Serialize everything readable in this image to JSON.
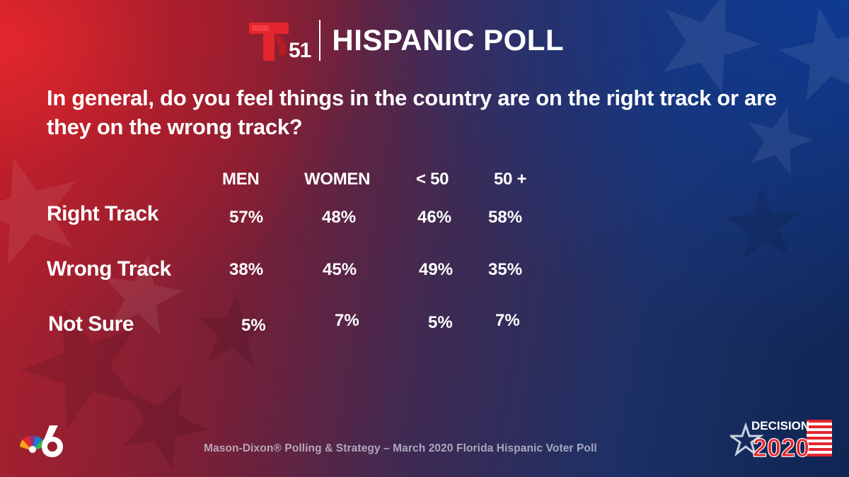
{
  "header": {
    "logo_number": "51",
    "title": "HISPANIC POLL"
  },
  "question": "In general, do you feel things in the country are on the right track or are they on the wrong track?",
  "chart_data": {
    "type": "table",
    "columns": [
      "MEN",
      "WOMEN",
      "< 50",
      "50 +"
    ],
    "rows": [
      {
        "label": "Right Track",
        "values": [
          "57%",
          "48%",
          "46%",
          "58%"
        ]
      },
      {
        "label": "Wrong Track",
        "values": [
          "38%",
          "45%",
          "49%",
          "35%"
        ]
      },
      {
        "label": "Not Sure",
        "values": [
          "5%",
          "7%",
          "5%",
          "7%"
        ]
      }
    ]
  },
  "footer": {
    "source": "Mason-Dixon® Polling & Strategy – March 2020 Florida Hispanic Voter Poll"
  },
  "branding": {
    "decision_word": "DECISION",
    "decision_year": "2020",
    "brand_red": "#e3262d",
    "background_red": "#b3202c",
    "background_blue": "#0f2552"
  },
  "icons": {
    "station_logo": "telemundo-t-icon",
    "network_logo": "nbc-peacock-icon",
    "election_logo": "decision-2020-star-flag-icon"
  }
}
